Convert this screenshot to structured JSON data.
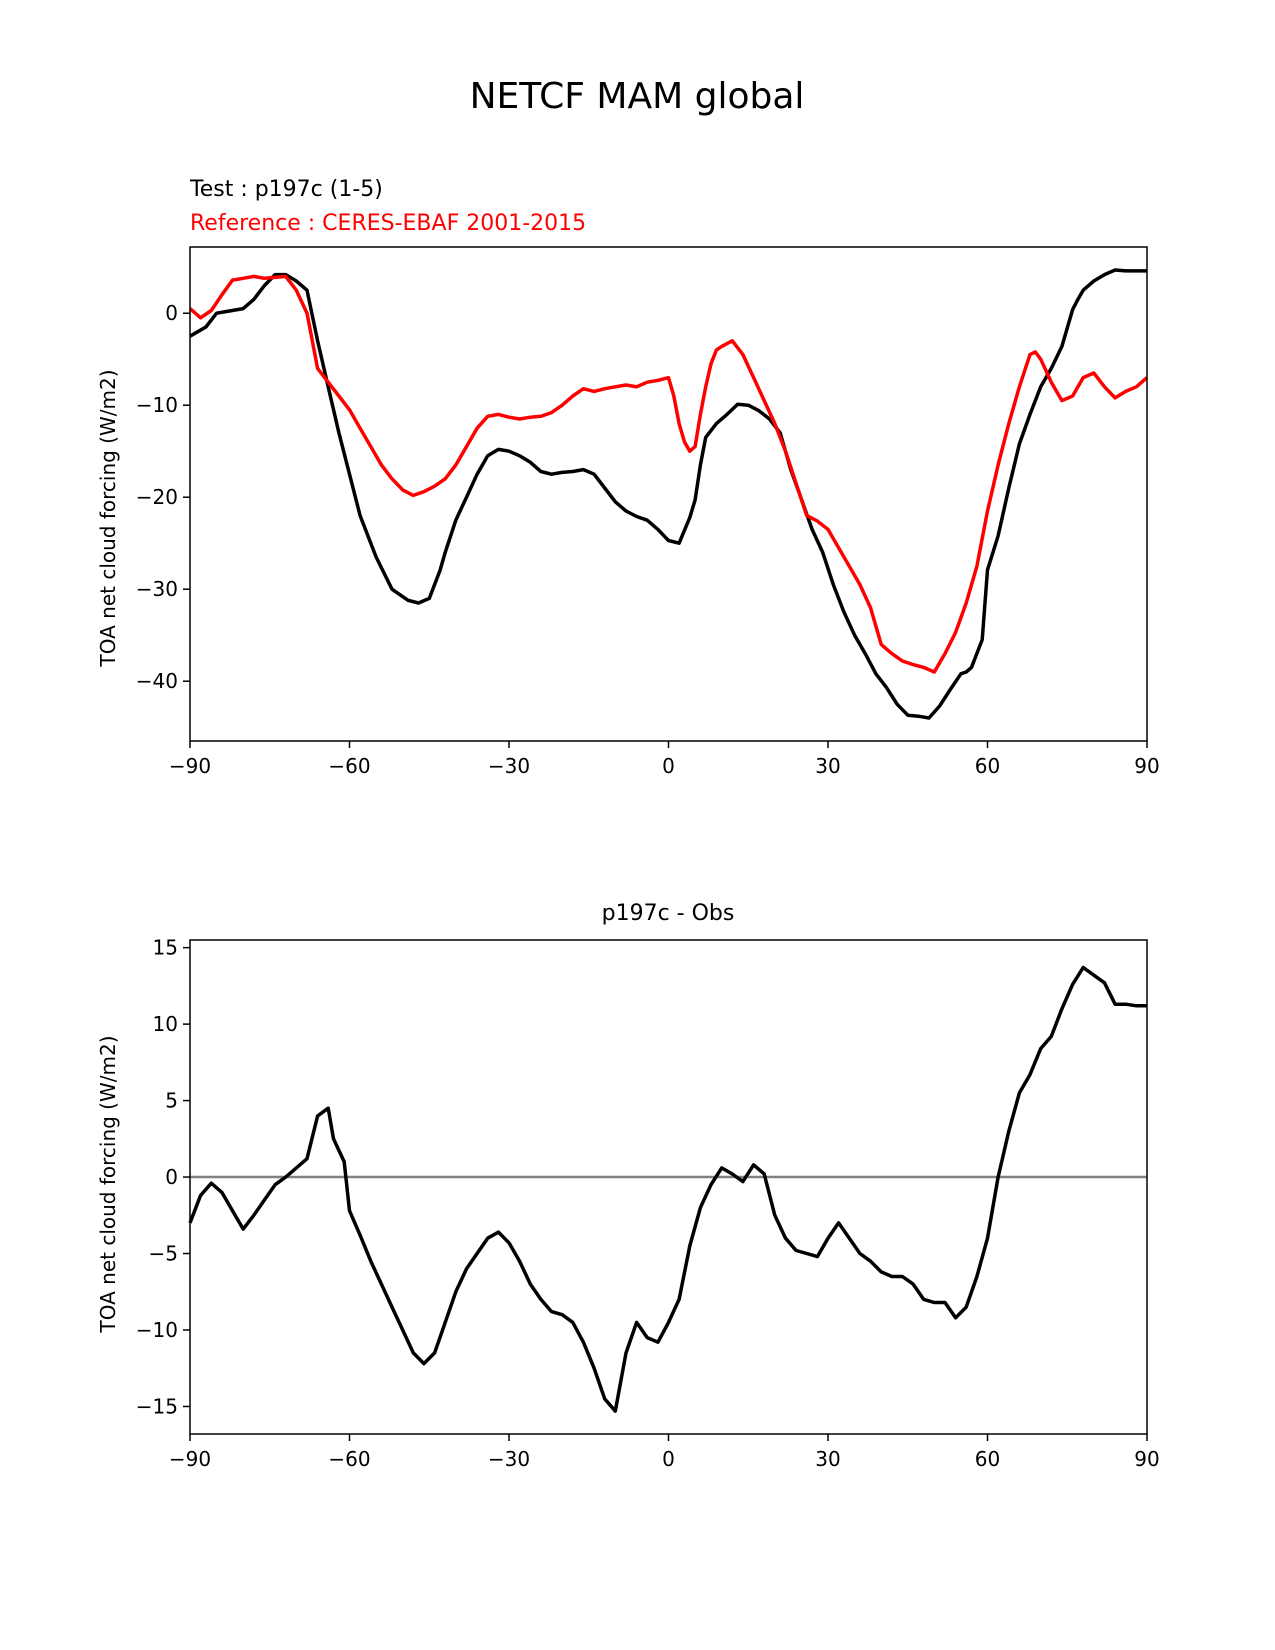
{
  "figure": {
    "title": "NETCF MAM global"
  },
  "chart_data": [
    {
      "type": "line",
      "test_label": "Test : p197c (1-5)",
      "reference_label": "Reference : CERES-EBAF 2001-2015",
      "title": "",
      "xlabel": "",
      "ylabel": "TOA net cloud forcing (W/m2)",
      "xlim": [
        -90,
        90
      ],
      "ylim": [
        -46.5,
        7.2
      ],
      "x_ticks": [
        -90,
        -60,
        -30,
        0,
        30,
        60,
        90
      ],
      "x_tick_labels": [
        "−90",
        "−60",
        "−30",
        "0",
        "30",
        "60",
        "90"
      ],
      "y_ticks": [
        0,
        -10,
        -20,
        -30,
        -40
      ],
      "y_tick_labels": [
        "0",
        "−10",
        "−20",
        "−30",
        "−40"
      ],
      "grid": false,
      "series": [
        {
          "color": "#000000",
          "x": [
            -90,
            -87,
            -85,
            -83,
            -80,
            -78,
            -76,
            -74,
            -72,
            -70,
            -68,
            -66,
            -64,
            -62,
            -60,
            -58,
            -55,
            -52,
            -49,
            -47,
            -45,
            -43,
            -42,
            -40,
            -38,
            -36,
            -34,
            -32,
            -30,
            -28,
            -26,
            -24,
            -22,
            -20,
            -18,
            -16,
            -14,
            -12,
            -10,
            -8,
            -6,
            -4,
            -2,
            0,
            2,
            4,
            5,
            6,
            7,
            9,
            11,
            13,
            15,
            17,
            19,
            21,
            23,
            25,
            27,
            29,
            31,
            33,
            35,
            37,
            39,
            41,
            43,
            45,
            47,
            49,
            51,
            53,
            55,
            56,
            57,
            59,
            60,
            62,
            64,
            66,
            68,
            70,
            72,
            74,
            76,
            77,
            78,
            79,
            80,
            82,
            84,
            86,
            88,
            90
          ],
          "y": [
            -2.5,
            -1.5,
            0,
            0.2,
            0.5,
            1.5,
            3,
            4.2,
            4.2,
            3.5,
            2.5,
            -3,
            -8,
            -13,
            -17.5,
            -22,
            -26.5,
            -30,
            -31.2,
            -31.5,
            -31,
            -28,
            -26,
            -22.5,
            -20,
            -17.5,
            -15.5,
            -14.8,
            -15,
            -15.5,
            -16.2,
            -17.2,
            -17.5,
            -17.3,
            -17.2,
            -17,
            -17.5,
            -19,
            -20.5,
            -21.5,
            -22.1,
            -22.5,
            -23.5,
            -24.7,
            -25,
            -22.2,
            -20.3,
            -16.5,
            -13.5,
            -12,
            -11,
            -9.9,
            -10,
            -10.6,
            -11.5,
            -13,
            -17,
            -20.2,
            -23.5,
            -26,
            -29.5,
            -32.5,
            -35,
            -37,
            -39.2,
            -40.7,
            -42.5,
            -43.7,
            -43.8,
            -44,
            -42.7,
            -40.9,
            -39.2,
            -39,
            -38.5,
            -35.5,
            -27.9,
            -24.2,
            -19,
            -14.2,
            -11,
            -8,
            -6,
            -3.6,
            0.4,
            1.5,
            2.5,
            3,
            3.5,
            4.2,
            4.7,
            4.6,
            4.6,
            4.6
          ]
        },
        {
          "color": "#ff0000",
          "x": [
            -90,
            -88,
            -86,
            -84,
            -82,
            -80,
            -78,
            -76,
            -74,
            -72,
            -70,
            -68,
            -66,
            -64,
            -62,
            -60,
            -58,
            -56,
            -54,
            -52,
            -50,
            -48,
            -46,
            -44,
            -42,
            -40,
            -38,
            -36,
            -34,
            -32,
            -30,
            -28,
            -26,
            -24,
            -22,
            -20,
            -18,
            -16,
            -14,
            -12,
            -10,
            -8,
            -6,
            -4,
            -2,
            0,
            1,
            2,
            3,
            4,
            5,
            6,
            7,
            8,
            9,
            10,
            12,
            14,
            16,
            18,
            20,
            22,
            24,
            26,
            28,
            30,
            32,
            34,
            36,
            38,
            40,
            42,
            44,
            46,
            48,
            50,
            52,
            54,
            56,
            58,
            60,
            62,
            64,
            66,
            68,
            69,
            70,
            72,
            74,
            76,
            78,
            80,
            82,
            84,
            86,
            88,
            90
          ],
          "y": [
            0.5,
            -0.5,
            0.3,
            2,
            3.6,
            3.8,
            4,
            3.8,
            3.9,
            4,
            2.5,
            0,
            -6,
            -7.5,
            -9,
            -10.5,
            -12.5,
            -14.5,
            -16.5,
            -18,
            -19.2,
            -19.8,
            -19.4,
            -18.8,
            -18,
            -16.5,
            -14.5,
            -12.5,
            -11.2,
            -11,
            -11.3,
            -11.5,
            -11.3,
            -11.2,
            -10.8,
            -10,
            -9,
            -8.2,
            -8.5,
            -8.2,
            -8,
            -7.8,
            -8,
            -7.5,
            -7.3,
            -7,
            -9,
            -12,
            -14,
            -15,
            -14.5,
            -11,
            -8,
            -5.5,
            -4,
            -3.6,
            -3,
            -4.5,
            -7,
            -9.5,
            -12,
            -15,
            -18.5,
            -22,
            -22.6,
            -23.5,
            -25.5,
            -27.5,
            -29.5,
            -32,
            -36,
            -37,
            -37.8,
            -38.2,
            -38.5,
            -39,
            -37,
            -34.7,
            -31.5,
            -27.5,
            -21.5,
            -16.5,
            -12,
            -8,
            -4.5,
            -4.2,
            -5,
            -7.5,
            -9.5,
            -9,
            -7,
            -6.5,
            -8,
            -9.2,
            -8.5,
            -8,
            -7
          ]
        }
      ]
    },
    {
      "type": "line",
      "title": "p197c - Obs",
      "xlabel": "",
      "ylabel": "TOA net cloud forcing (W/m2)",
      "xlim": [
        -90,
        90
      ],
      "ylim": [
        -16.8,
        15.5
      ],
      "x_ticks": [
        -90,
        -60,
        -30,
        0,
        30,
        60,
        90
      ],
      "x_tick_labels": [
        "−90",
        "−60",
        "−30",
        "0",
        "30",
        "60",
        "90"
      ],
      "y_ticks": [
        15,
        10,
        5,
        0,
        -5,
        -10,
        -15
      ],
      "y_tick_labels": [
        "15",
        "10",
        "5",
        "0",
        "−5",
        "−10",
        "−15"
      ],
      "grid": false,
      "reference_line": {
        "y": 0,
        "color": "#808080"
      },
      "series": [
        {
          "color": "#000000",
          "x": [
            -90,
            -88,
            -86,
            -84,
            -82,
            -80,
            -78,
            -76,
            -74,
            -72,
            -70,
            -68,
            -66,
            -64,
            -63,
            -61,
            -60,
            -58,
            -56,
            -54,
            -52,
            -50,
            -48,
            -46,
            -44,
            -42,
            -40,
            -38,
            -36,
            -34,
            -32,
            -30,
            -28,
            -26,
            -24,
            -22,
            -20,
            -18,
            -16,
            -14,
            -12,
            -10,
            -8,
            -6,
            -4,
            -2,
            0,
            2,
            4,
            6,
            8,
            10,
            12,
            14,
            16,
            18,
            20,
            22,
            24,
            26,
            28,
            30,
            32,
            34,
            36,
            38,
            40,
            42,
            44,
            46,
            48,
            50,
            52,
            54,
            56,
            58,
            60,
            62,
            64,
            66,
            68,
            70,
            72,
            74,
            76,
            78,
            80,
            82,
            84,
            86,
            88,
            90
          ],
          "y": [
            -3,
            -1.2,
            -0.4,
            -1,
            -2.2,
            -3.4,
            -2.5,
            -1.5,
            -0.5,
            0,
            0.6,
            1.2,
            4,
            4.5,
            2.5,
            1,
            -2.2,
            -3.8,
            -5.5,
            -7,
            -8.5,
            -10,
            -11.5,
            -12.2,
            -11.5,
            -9.5,
            -7.5,
            -6,
            -5,
            -4,
            -3.6,
            -4.3,
            -5.5,
            -7,
            -8,
            -8.8,
            -9,
            -9.5,
            -10.8,
            -12.5,
            -14.5,
            -15.3,
            -11.5,
            -9.5,
            -10.5,
            -10.8,
            -9.5,
            -8,
            -4.5,
            -2,
            -0.5,
            0.6,
            0.2,
            -0.3,
            0.8,
            0.2,
            -2.5,
            -4,
            -4.8,
            -5,
            -5.2,
            -4,
            -3,
            -4,
            -5,
            -5.5,
            -6.2,
            -6.5,
            -6.5,
            -7,
            -8,
            -8.2,
            -8.2,
            -9.2,
            -8.5,
            -6.5,
            -4,
            0,
            3,
            5.5,
            6.7,
            8.4,
            9.2,
            11,
            12.6,
            13.7,
            13.2,
            12.7,
            11.3,
            11.3,
            11.2,
            11.2
          ]
        }
      ]
    }
  ]
}
